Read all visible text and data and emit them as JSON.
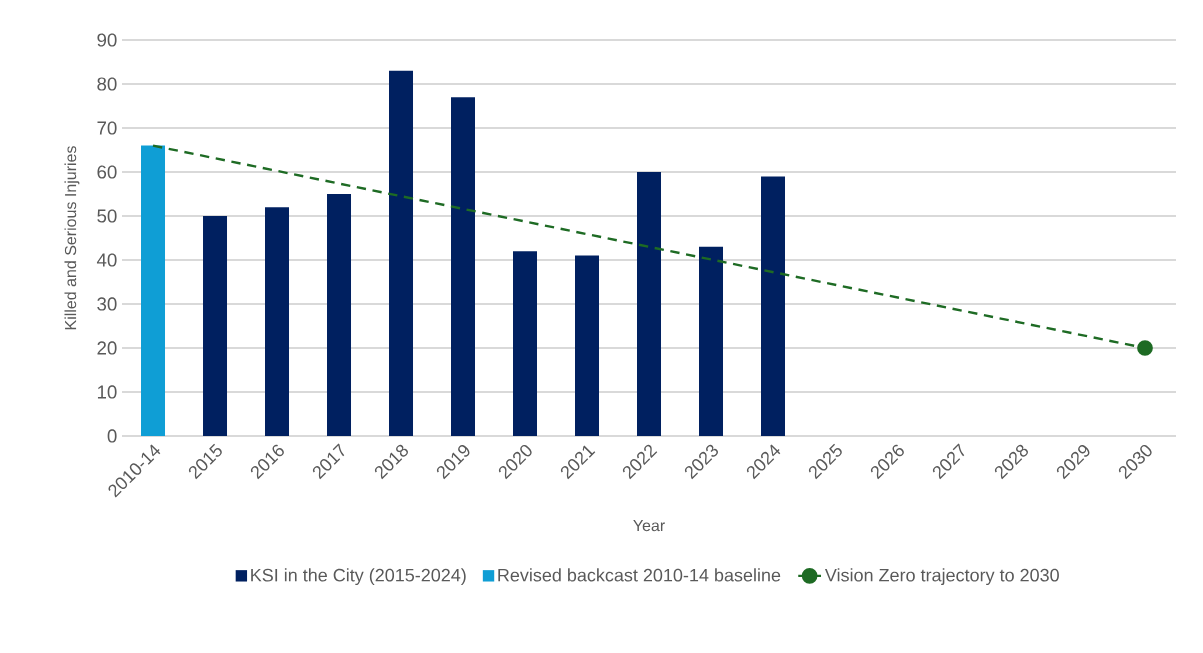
{
  "chart_data": {
    "type": "bar",
    "xlabel": "Year",
    "ylabel": "Killed and Serious Injuries",
    "categories": [
      "2010-14",
      "2015",
      "2016",
      "2017",
      "2018",
      "2019",
      "2020",
      "2021",
      "2022",
      "2023",
      "2024",
      "2025",
      "2026",
      "2027",
      "2028",
      "2029",
      "2030"
    ],
    "series": [
      {
        "name": "KSI in the City (2015-2024)",
        "color": "#002060",
        "values": [
          null,
          50,
          52,
          55,
          83,
          77,
          42,
          41,
          60,
          43,
          59,
          null,
          null,
          null,
          null,
          null,
          null
        ]
      },
      {
        "name": "Revised backcast 2010-14 baseline",
        "color": "#0f9ed5",
        "values": [
          66,
          null,
          null,
          null,
          null,
          null,
          null,
          null,
          null,
          null,
          null,
          null,
          null,
          null,
          null,
          null,
          null
        ]
      },
      {
        "name": "Vision Zero trajectory to 2030",
        "type": "line",
        "color": "#1e6b24",
        "line_style": "dashed",
        "marker": "circle",
        "values": [
          66,
          null,
          null,
          null,
          null,
          null,
          null,
          null,
          null,
          null,
          null,
          null,
          null,
          null,
          null,
          null,
          20
        ]
      }
    ],
    "ylim": [
      0,
      90
    ],
    "yticks": [
      0,
      10,
      20,
      30,
      40,
      50,
      60,
      70,
      80,
      90
    ],
    "grid": "y",
    "legend": "bottom"
  }
}
